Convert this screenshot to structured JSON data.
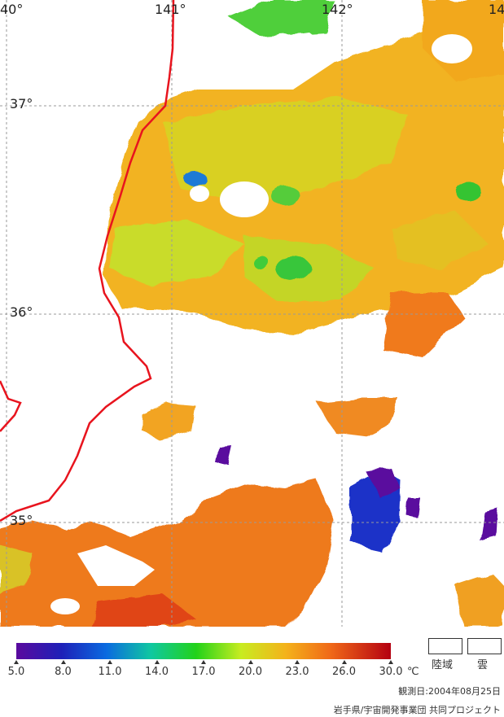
{
  "map": {
    "lon_labels": [
      "40°",
      "141°",
      "142°",
      "14"
    ],
    "lat_labels": [
      "37°",
      "36°",
      "35°"
    ],
    "colors": {
      "coastline": "#e8141e",
      "grid": "#9a9a9a",
      "land_cloud": "#ffffff"
    }
  },
  "colorbar": {
    "ticks": [
      "5.0",
      "8.0",
      "11.0",
      "14.0",
      "17.0",
      "20.0",
      "23.0",
      "26.0",
      "30.0"
    ],
    "unit": "℃",
    "colors": [
      "#5a0a9e",
      "#1e20b8",
      "#0a6ae0",
      "#10c8a0",
      "#22d21a",
      "#c8ec20",
      "#f4b21a",
      "#f06818",
      "#b40010"
    ]
  },
  "legend": {
    "land_label": "陸域",
    "cloud_label": "雲"
  },
  "footer": {
    "observation_date": "観測日:2004年08月25日",
    "credit": "岩手県/宇宙開発事業団 共同プロジェクト"
  }
}
